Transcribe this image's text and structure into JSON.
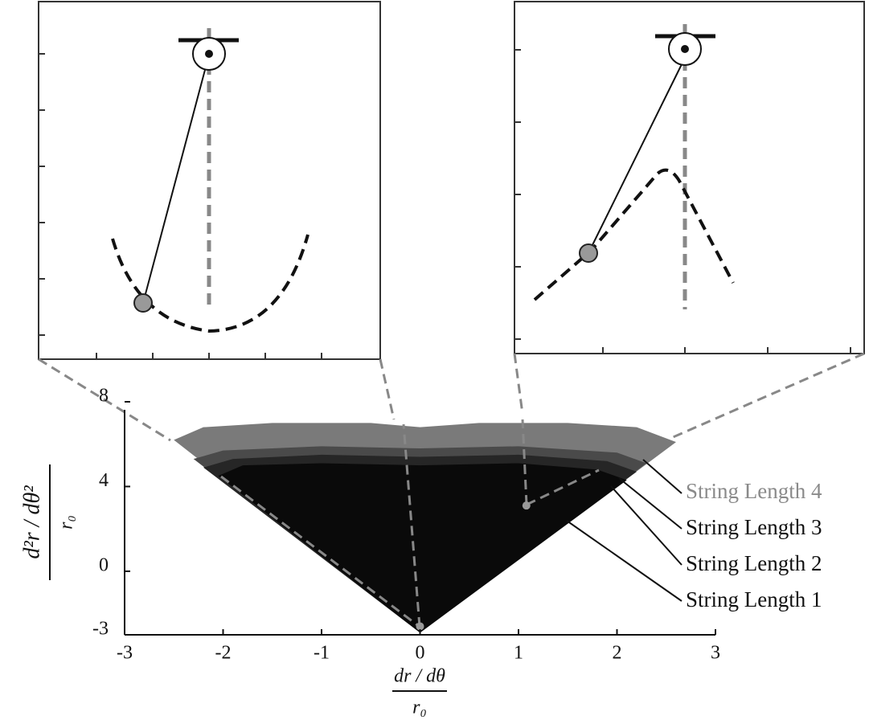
{
  "chart_data": {
    "type": "region",
    "x_label": {
      "numerator": "dr / dθ",
      "denominator": "r₀"
    },
    "y_label": {
      "numerator": "d²r / dθ²",
      "denominator": "r₀"
    },
    "xlim": [
      -3,
      3
    ],
    "xticks": [
      -3,
      -2,
      -1,
      0,
      1,
      2,
      3
    ],
    "ylim": [
      -3,
      8
    ],
    "yticks": [
      -3,
      0,
      4,
      8
    ],
    "series": [
      {
        "name": "String Length 4",
        "color": "#7a7a7a",
        "x": [
          -2.5,
          -2.2,
          -1.5,
          -0.5,
          0,
          0.6,
          1.5,
          2.2,
          2.6,
          0
        ],
        "values": [
          6.2,
          6.8,
          7.0,
          7.0,
          6.8,
          7.0,
          7.0,
          6.8,
          6.1,
          -2.9
        ]
      },
      {
        "name": "String Length 3",
        "color": "#4a4a4a",
        "x": [
          -2.3,
          -2.0,
          -1.0,
          0,
          1.0,
          2.0,
          2.3,
          0
        ],
        "values": [
          5.3,
          5.7,
          5.9,
          5.8,
          5.9,
          5.6,
          5.1,
          -2.9
        ]
      },
      {
        "name": "String Length 2",
        "color": "#262626",
        "x": [
          -2.2,
          -1.9,
          -1.0,
          0,
          1.0,
          1.9,
          2.2,
          0
        ],
        "values": [
          4.9,
          5.3,
          5.5,
          5.4,
          5.5,
          5.2,
          4.7,
          -2.9
        ]
      },
      {
        "name": "String Length 1",
        "color": "#0a0a0a",
        "x": [
          -2.05,
          -1.8,
          -1.0,
          0,
          1.0,
          1.8,
          2.1,
          0
        ],
        "values": [
          4.5,
          5.0,
          5.1,
          5.0,
          5.1,
          4.8,
          4.3,
          -2.9
        ]
      }
    ],
    "markers": {
      "x": [
        0,
        1.08
      ],
      "values": [
        -2.6,
        3.1
      ]
    }
  }
}
